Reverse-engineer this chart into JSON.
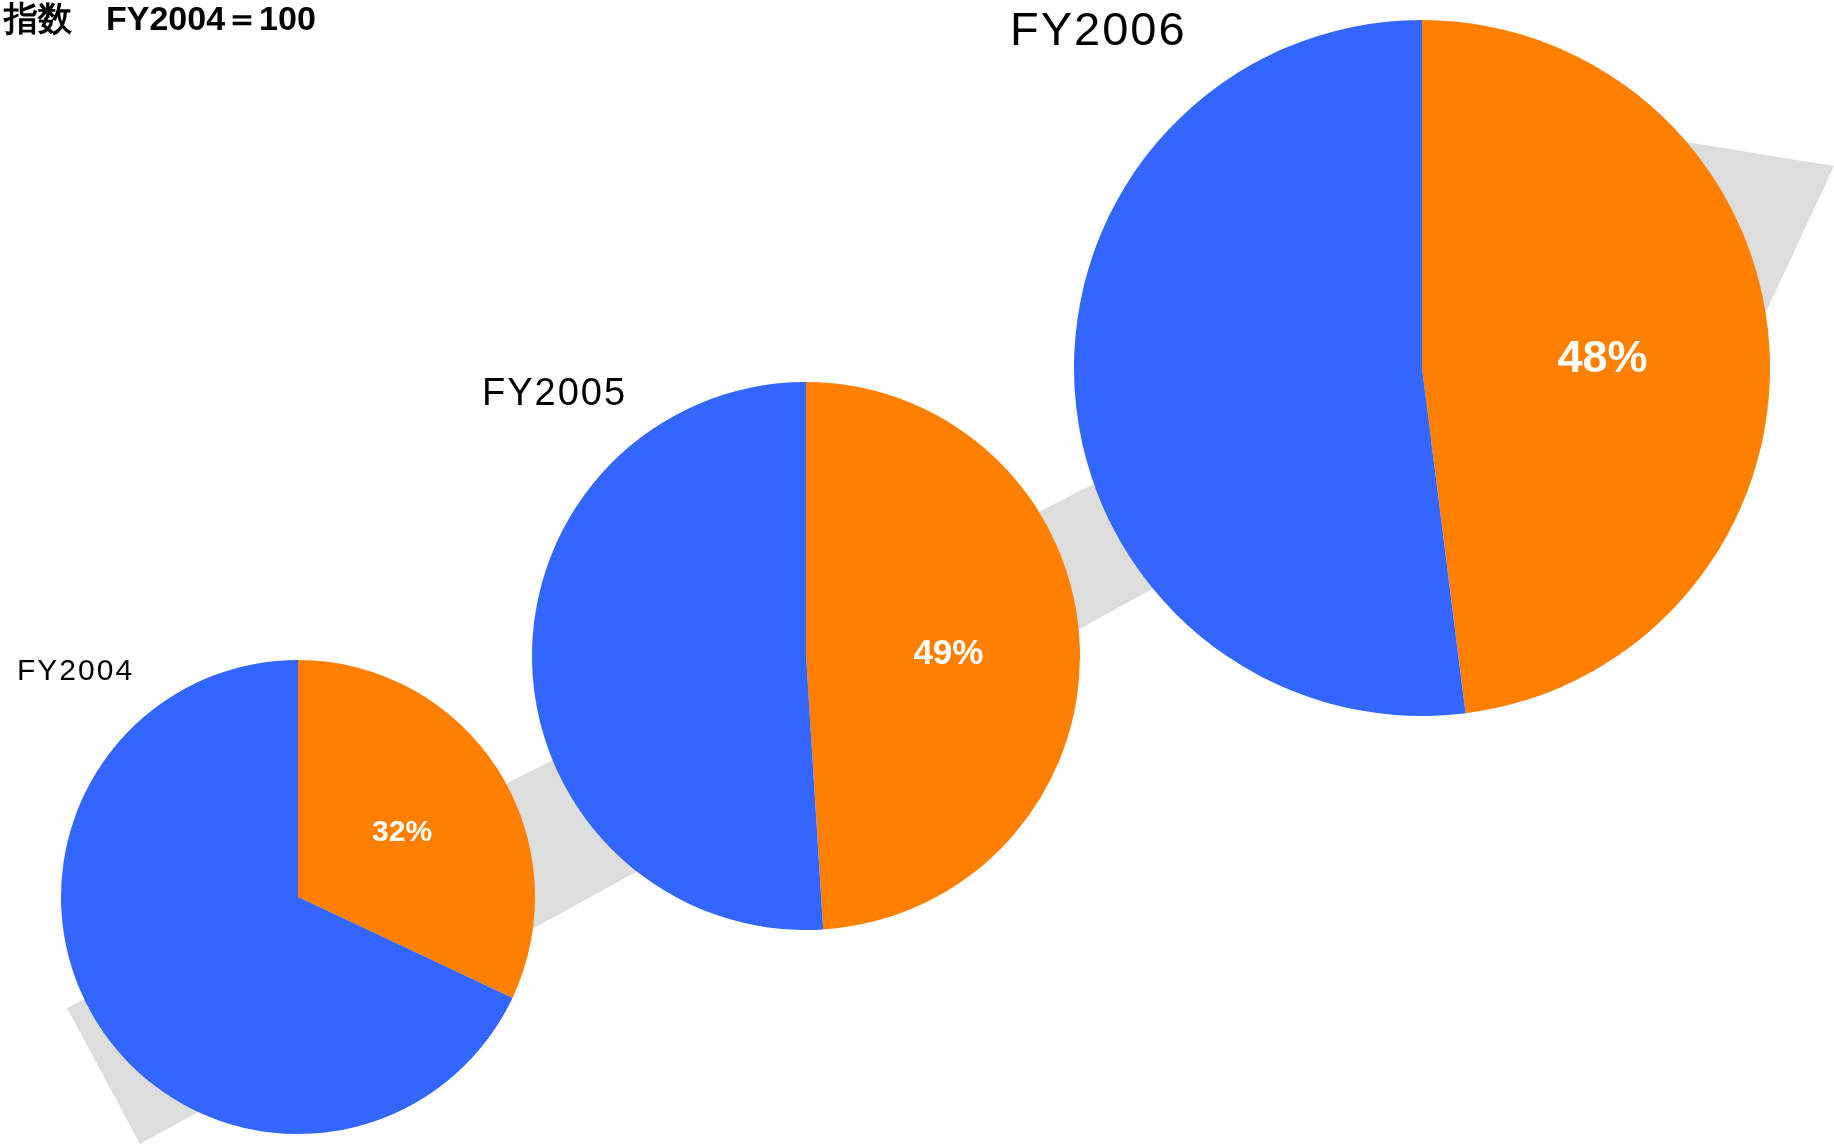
{
  "chart_data": [
    {
      "type": "other",
      "title": "指数　FY2004＝100"
    },
    {
      "type": "pie",
      "title": "FY2004",
      "categories": [
        null,
        null
      ],
      "values": [
        32,
        68
      ],
      "colors": [
        "#ff7f00",
        "#3366ff"
      ],
      "value_labels": [
        "32%",
        null
      ]
    },
    {
      "type": "pie",
      "title": "FY2005",
      "categories": [
        null,
        null
      ],
      "values": [
        49,
        51
      ],
      "colors": [
        "#ff7f00",
        "#3366ff"
      ],
      "value_labels": [
        "49%",
        null
      ]
    },
    {
      "type": "pie",
      "title": "FY2006",
      "categories": [
        null,
        null
      ],
      "values": [
        48,
        52
      ],
      "colors": [
        "#ff7f00",
        "#3366ff"
      ],
      "value_labels": [
        "48%",
        null
      ]
    }
  ]
}
